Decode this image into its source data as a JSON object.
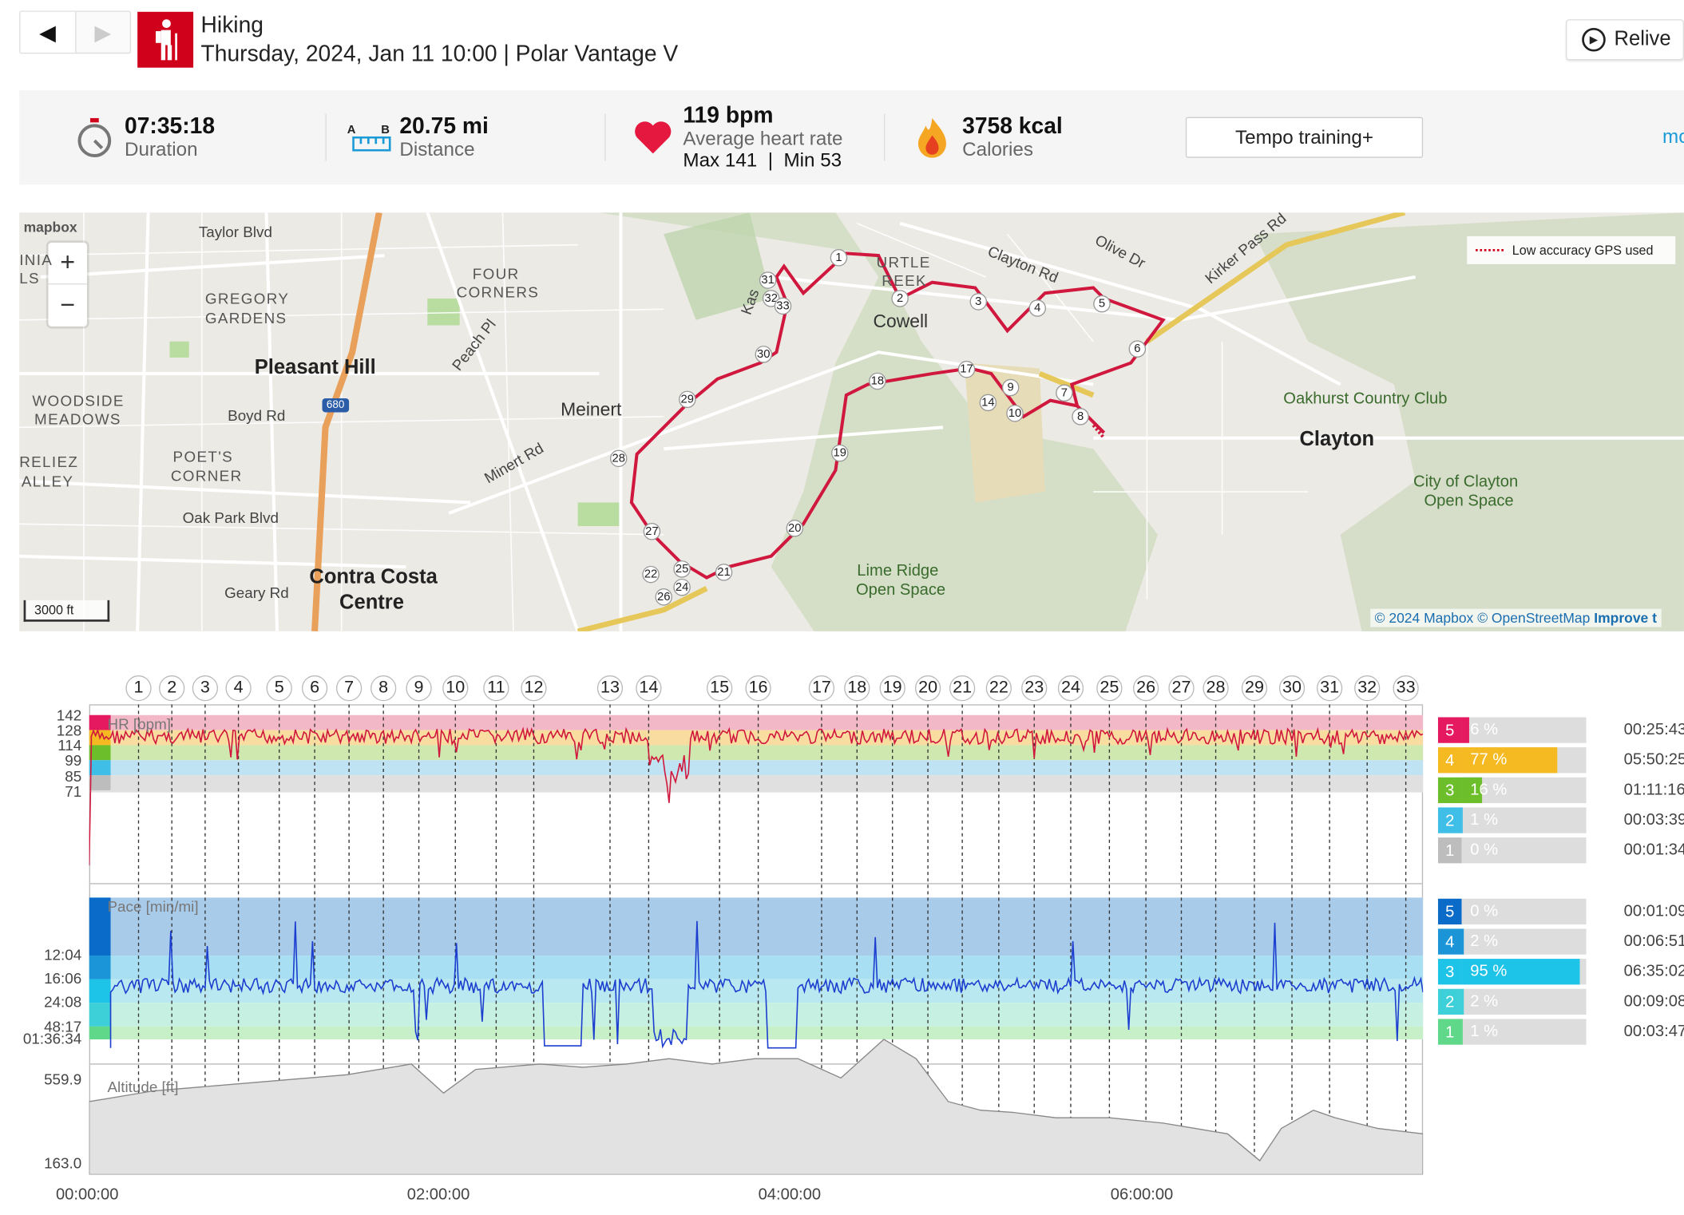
{
  "header": {
    "title": "Hiking",
    "subtitle": "Thursday, 2024, Jan 11 10:00 | Polar Vantage V",
    "prev": "◀",
    "next": "▶",
    "relive": "Relive"
  },
  "summary": {
    "duration": {
      "value": "07:35:18",
      "label": "Duration"
    },
    "distance": {
      "value": "20.75 mi",
      "label": "Distance",
      "ab": "A  B"
    },
    "heart": {
      "value": "119 bpm",
      "label": "Average heart rate",
      "sub": "Max 141  |  Min 53"
    },
    "calories": {
      "value": "3758 kcal",
      "label": "Calories"
    },
    "tempo": "Tempo training+",
    "more": "mo"
  },
  "map": {
    "mapbox": "mapbox",
    "scale": "3000 ft",
    "low_accuracy": "Low accuracy GPS used",
    "attribution_a": "© 2024 Mapbox",
    "attribution_b": "© OpenStreetMap",
    "attribution_c": "Improve t",
    "labels": {
      "pleasant_hill": "Pleasant Hill",
      "contra_costa": "Contra Costa",
      "centre": "Centre",
      "clayton": "Clayton",
      "meinert": "Meinert",
      "cowell": "Cowell",
      "taylor": "Taylor Blvd",
      "four": "FOUR",
      "corners": "CORNERS",
      "gregory": "GREGORY",
      "gardens": "GARDENS",
      "woodside": "WOODSIDE",
      "meadows": "MEADOWS",
      "poets": "POET'S",
      "corner": "CORNER",
      "reliez": "RELIEZ",
      "valley": "ALLEY",
      "boyd": "Boyd Rd",
      "oakpark": "Oak Park Blvd",
      "geary": "Geary Rd",
      "peach": "Peach Pl",
      "minert": "Minert Rd",
      "clayton_rd": "Clayton Rd",
      "olive": "Olive Dr",
      "kirker": "Kirker Pass Rd",
      "turtle": "URTLE",
      "reek": "REEK",
      "oakhurst": "Oakhurst Country Club",
      "city_clayton": "City of Clayton",
      "open_space": "Open Space",
      "lime": "Lime Ridge",
      "lime_os": "Open Space",
      "i680": "680",
      "inia": "INIA",
      "ls": "LS",
      "kas": "Kas"
    },
    "route_markers": [
      "1",
      "2",
      "3",
      "4",
      "5",
      "6",
      "7",
      "8",
      "9",
      "10",
      "14",
      "17",
      "18",
      "19",
      "20",
      "21",
      "22",
      "24",
      "25",
      "26",
      "27",
      "28",
      "29",
      "30",
      "31",
      "32",
      "33"
    ]
  },
  "laps": [
    "1",
    "2",
    "3",
    "4",
    "5",
    "6",
    "7",
    "8",
    "9",
    "10",
    "11",
    "12",
    "13",
    "14",
    "15",
    "16",
    "17",
    "18",
    "19",
    "20",
    "21",
    "22",
    "23",
    "24",
    "25",
    "26",
    "27",
    "28",
    "29",
    "30",
    "31",
    "32",
    "33"
  ],
  "hr_chart": {
    "title": "HR [bpm]",
    "ticks": [
      "142",
      "128",
      "114",
      "99",
      "85",
      "71"
    ],
    "zones": [
      {
        "num": "5",
        "pct": "6 %",
        "time": "00:25:43",
        "value": 6,
        "color": "#e5195f"
      },
      {
        "num": "4",
        "pct": "77 %",
        "time": "05:50:25",
        "value": 77,
        "color": "#f5b921"
      },
      {
        "num": "3",
        "pct": "16 %",
        "time": "01:11:16",
        "value": 16,
        "color": "#6cbf2a"
      },
      {
        "num": "2",
        "pct": "1 %",
        "time": "00:03:39",
        "value": 1,
        "color": "#3fbfe8"
      },
      {
        "num": "1",
        "pct": "0 %",
        "time": "00:01:34",
        "value": 0,
        "color": "#bdbdbd"
      }
    ]
  },
  "pace_chart": {
    "title": "Pace [min/mi]",
    "ticks": [
      "12:04",
      "16:06",
      "24:08",
      "48:17",
      "01:36:34"
    ],
    "zones": [
      {
        "num": "5",
        "pct": "0 %",
        "time": "00:01:09",
        "value": 0,
        "color": "#0a6bc8"
      },
      {
        "num": "4",
        "pct": "2 %",
        "time": "00:06:51",
        "value": 2,
        "color": "#1b95d8"
      },
      {
        "num": "3",
        "pct": "95 %",
        "time": "06:35:02",
        "value": 95,
        "color": "#1ec3e8"
      },
      {
        "num": "2",
        "pct": "2 %",
        "time": "00:09:08",
        "value": 2,
        "color": "#3ed0d8"
      },
      {
        "num": "1",
        "pct": "1 %",
        "time": "00:03:47",
        "value": 1,
        "color": "#5fd88a"
      }
    ]
  },
  "altitude_chart": {
    "title": "Altitude [ft]",
    "ticks": [
      "559.9",
      "163.0"
    ]
  },
  "time_axis": [
    "00:00:00",
    "02:00:00",
    "04:00:00",
    "06:00:00"
  ]
}
